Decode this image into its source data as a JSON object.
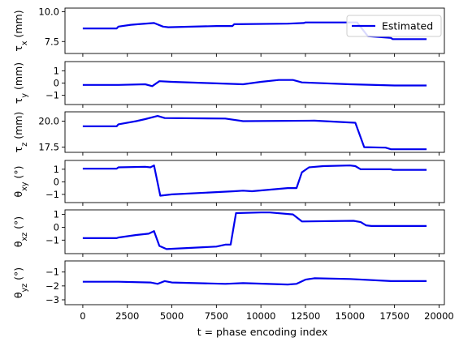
{
  "chart_data": {
    "type": "line",
    "shared_x": {
      "label": "t = phase encoding index",
      "lim": [
        -1000,
        20300
      ],
      "ticks": [
        0,
        2500,
        5000,
        7500,
        10000,
        12500,
        15000,
        17500,
        20000
      ],
      "tick_labels": [
        "0",
        "2500",
        "5000",
        "7500",
        "10000",
        "12500",
        "15000",
        "17500",
        "20000"
      ]
    },
    "legend": {
      "location": "top-right",
      "entries": [
        {
          "label": "Estimated",
          "color": "#0000ee"
        }
      ]
    },
    "series_color": "#0000ee",
    "panels": [
      {
        "ylabel_main": "τ",
        "ylabel_sub": "x",
        "ylabel_unit": " (mm)",
        "ylim": [
          6.5,
          10.3
        ],
        "ticks": [
          7.5,
          10.0
        ],
        "tick_labels": [
          "7.5",
          "10.0"
        ],
        "x": [
          0,
          1900,
          2000,
          2700,
          3100,
          4000,
          4500,
          4800,
          7500,
          8400,
          8500,
          11500,
          12400,
          12500,
          15400,
          16000,
          17300,
          17400,
          19300
        ],
        "y": [
          8.6,
          8.6,
          8.75,
          8.9,
          8.95,
          9.05,
          8.75,
          8.7,
          8.8,
          8.8,
          8.95,
          9.0,
          9.05,
          9.1,
          9.1,
          7.95,
          7.8,
          7.7,
          7.7
        ]
      },
      {
        "ylabel_main": "τ",
        "ylabel_sub": "y",
        "ylabel_unit": " (mm)",
        "ylim": [
          -1.75,
          1.75
        ],
        "ticks": [
          -1,
          0,
          1
        ],
        "tick_labels": [
          "−1",
          "0",
          "1"
        ],
        "x": [
          0,
          2000,
          3500,
          3900,
          4300,
          5000,
          7000,
          9000,
          10000,
          11000,
          11800,
          12300,
          15000,
          17500,
          19300
        ],
        "y": [
          -0.15,
          -0.15,
          -0.1,
          -0.25,
          0.15,
          0.1,
          0.0,
          -0.1,
          0.1,
          0.25,
          0.25,
          0.05,
          -0.1,
          -0.2,
          -0.2
        ]
      },
      {
        "ylabel_main": "τ",
        "ylabel_sub": "z",
        "ylabel_unit": " (mm)",
        "ylim": [
          17.0,
          20.9
        ],
        "ticks": [
          17.5,
          20.0
        ],
        "tick_labels": [
          "17.5",
          "20.0"
        ],
        "x": [
          0,
          1900,
          2000,
          3000,
          3500,
          4200,
          4600,
          8000,
          9000,
          13000,
          15300,
          15800,
          17000,
          17300,
          19300
        ],
        "y": [
          19.5,
          19.5,
          19.7,
          20.0,
          20.2,
          20.5,
          20.3,
          20.25,
          20.0,
          20.05,
          19.85,
          17.5,
          17.45,
          17.3,
          17.3
        ]
      },
      {
        "ylabel_main": "θ",
        "ylabel_sub": "xy",
        "ylabel_unit": " (°)",
        "ylim": [
          -1.65,
          1.7
        ],
        "ticks": [
          -1,
          0,
          1
        ],
        "tick_labels": [
          "−1",
          "0",
          "1"
        ],
        "x": [
          0,
          1900,
          2000,
          3500,
          3800,
          4000,
          4350,
          5000,
          8500,
          9000,
          9500,
          11500,
          12000,
          12300,
          12700,
          13500,
          15000,
          15300,
          15600,
          17300,
          17400,
          19300
        ],
        "y": [
          1.05,
          1.05,
          1.15,
          1.2,
          1.15,
          1.3,
          -1.1,
          -1.0,
          -0.75,
          -0.7,
          -0.75,
          -0.5,
          -0.5,
          0.75,
          1.15,
          1.25,
          1.3,
          1.25,
          1.0,
          1.0,
          0.95,
          0.95
        ]
      },
      {
        "ylabel_main": "θ",
        "ylabel_sub": "xz",
        "ylabel_unit": " (°)",
        "ylim": [
          -2.05,
          1.35
        ],
        "ticks": [
          -1,
          0,
          1
        ],
        "tick_labels": [
          "−1",
          "0",
          "1"
        ],
        "x": [
          0,
          1900,
          2000,
          3000,
          3700,
          4000,
          4300,
          4700,
          7500,
          8000,
          8300,
          8600,
          10000,
          10500,
          11800,
          12300,
          15200,
          15600,
          15900,
          16200,
          19300
        ],
        "y": [
          -0.85,
          -0.85,
          -0.8,
          -0.6,
          -0.5,
          -0.3,
          -1.45,
          -1.7,
          -1.5,
          -1.35,
          -1.35,
          1.1,
          1.15,
          1.15,
          1.0,
          0.45,
          0.5,
          0.4,
          0.15,
          0.1,
          0.1
        ]
      },
      {
        "ylabel_main": "θ",
        "ylabel_sub": "yz",
        "ylabel_unit": " (°)",
        "ylim": [
          -3.35,
          -0.2
        ],
        "ticks": [
          -3,
          -2,
          -1
        ],
        "tick_labels": [
          "−3",
          "−2",
          "−1"
        ],
        "x": [
          0,
          2000,
          3800,
          4200,
          4600,
          5000,
          8000,
          9000,
          11500,
          12000,
          12500,
          13000,
          15000,
          17300,
          19300
        ],
        "y": [
          -1.7,
          -1.7,
          -1.75,
          -1.85,
          -1.65,
          -1.75,
          -1.85,
          -1.8,
          -1.9,
          -1.85,
          -1.55,
          -1.45,
          -1.5,
          -1.65,
          -1.65
        ]
      }
    ]
  }
}
